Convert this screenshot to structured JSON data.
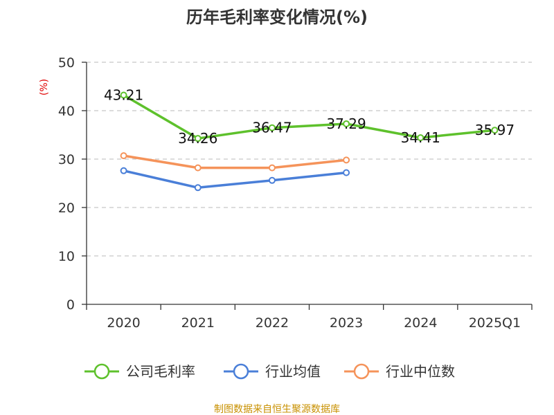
{
  "chart_data": {
    "type": "line",
    "title": "历年毛利率变化情况(%)",
    "ylabel": "(%)",
    "categories": [
      "2020",
      "2021",
      "2022",
      "2023",
      "2024",
      "2025Q1"
    ],
    "ylim": [
      0,
      50
    ],
    "yticks": [
      0,
      10,
      20,
      30,
      40,
      50
    ],
    "grid": true,
    "legend_position": "bottom",
    "series": [
      {
        "name": "公司毛利率",
        "color": "#5ec12c",
        "values": [
          43.21,
          34.26,
          36.47,
          37.29,
          34.41,
          35.97
        ],
        "labels": [
          "43.21",
          "34.26",
          "36.47",
          "37.29",
          "34.41",
          "35.97"
        ]
      },
      {
        "name": "行业均值",
        "color": "#4a7fd8",
        "values": [
          27.6,
          24.1,
          25.6,
          27.2,
          null,
          null
        ]
      },
      {
        "name": "行业中位数",
        "color": "#f5935a",
        "values": [
          30.7,
          28.2,
          28.2,
          29.8,
          null,
          null
        ]
      }
    ]
  },
  "footer": {
    "source": "制图数据来自恒生聚源数据库"
  }
}
